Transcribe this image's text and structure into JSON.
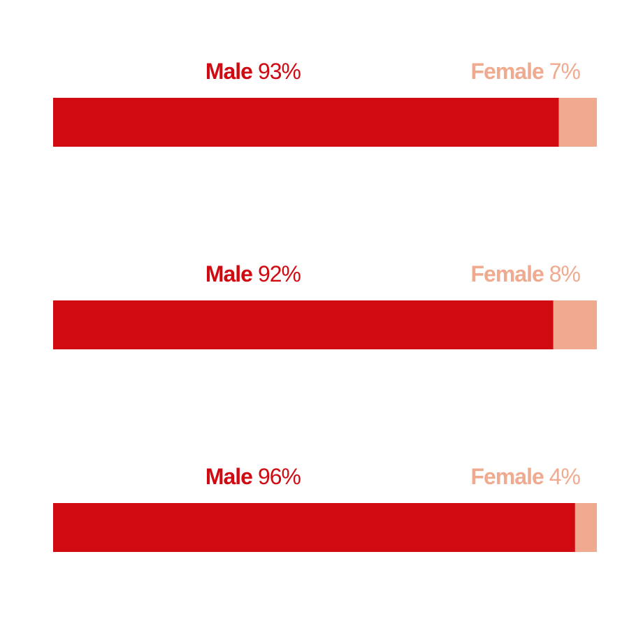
{
  "chart_data": {
    "type": "bar",
    "orientation": "horizontal",
    "stacked": true,
    "categories": [
      null,
      null,
      null
    ],
    "series": [
      {
        "name": "Male",
        "color": "#d10a11",
        "values": [
          93,
          92,
          96
        ],
        "value_labels": [
          "93%",
          "92%",
          "96%"
        ]
      },
      {
        "name": "Female",
        "color": "#f0aa8f",
        "values": [
          7,
          8,
          4
        ],
        "value_labels": [
          "7%",
          "8%",
          "4%"
        ]
      }
    ],
    "xlim": [
      0,
      100
    ]
  }
}
